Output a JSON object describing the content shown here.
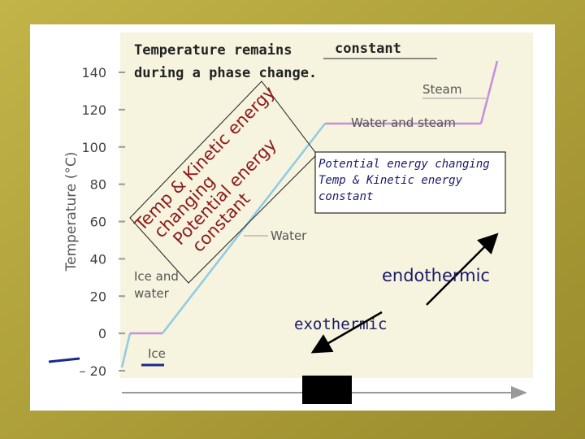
{
  "title": {
    "line1": "Temperature remains",
    "blank": "constant",
    "line2": "during a phase change."
  },
  "axis": {
    "label": "Temperature (°C)",
    "ticks": [
      140,
      120,
      100,
      80,
      60,
      40,
      20,
      0,
      {
        "value": -20,
        "label": "– 20"
      }
    ]
  },
  "curve_labels": {
    "steam": "Steam",
    "water_and_steam": "Water and steam",
    "water": "Water",
    "ice_and_water": [
      "Ice and",
      "water"
    ],
    "ice": "Ice"
  },
  "slanted_note": [
    "Temp & Kinetic energy",
    "changing",
    "Potential energy",
    "constant"
  ],
  "box_note": [
    "Potential energy changing",
    "Temp & Kinetic energy",
    "constant"
  ],
  "arrows": {
    "endothermic": "endothermic",
    "exothermic": "exothermic"
  }
}
